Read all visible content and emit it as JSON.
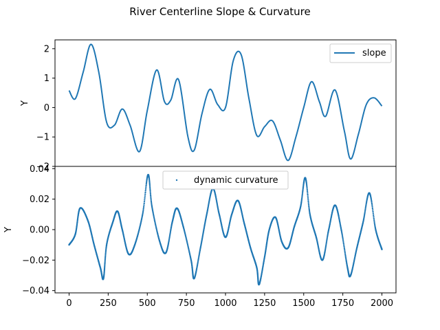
{
  "figure": {
    "title": "River Centerline Slope & Curvature"
  },
  "chart_data": [
    {
      "type": "line",
      "ylabel": "Y",
      "xlim": [
        -90,
        2090
      ],
      "ylim": [
        -2,
        2.3
      ],
      "yticks": [
        2,
        1,
        0,
        -1,
        -2
      ],
      "ytick_labels": [
        "2",
        "1",
        "0",
        "−1",
        "−2"
      ],
      "legend_position": "top-right",
      "color": "#1f77b4",
      "series": [
        {
          "name": "slope",
          "x": [
            0,
            40,
            90,
            140,
            190,
            240,
            290,
            340,
            390,
            450,
            500,
            560,
            610,
            650,
            700,
            760,
            800,
            850,
            900,
            950,
            1000,
            1050,
            1100,
            1150,
            1200,
            1250,
            1300,
            1350,
            1400,
            1450,
            1500,
            1550,
            1600,
            1640,
            1700,
            1760,
            1800,
            1850,
            1900,
            1950,
            2000
          ],
          "y": [
            0.58,
            0.3,
            1.2,
            2.15,
            1.2,
            -0.5,
            -0.6,
            -0.05,
            -0.6,
            -1.5,
            -0.1,
            1.28,
            0.2,
            0.25,
            0.95,
            -1.0,
            -1.45,
            -0.2,
            0.62,
            0.1,
            0.0,
            1.6,
            1.8,
            0.3,
            -0.95,
            -0.65,
            -0.45,
            -1.1,
            -1.8,
            -1.0,
            0.0,
            0.88,
            0.2,
            -0.3,
            0.6,
            -0.8,
            -1.75,
            -0.9,
            0.1,
            0.33,
            0.05
          ]
        }
      ]
    },
    {
      "type": "scatter",
      "xlabel": "",
      "ylabel": "Y",
      "xlim": [
        -90,
        2090
      ],
      "ylim": [
        -0.0415,
        0.0415
      ],
      "xticks": [
        0,
        250,
        500,
        750,
        1000,
        1250,
        1500,
        1750,
        2000
      ],
      "xtick_labels": [
        "0",
        "250",
        "500",
        "750",
        "1000",
        "1250",
        "1500",
        "1750",
        "2000"
      ],
      "yticks": [
        0.04,
        0.02,
        0.0,
        -0.02,
        -0.04
      ],
      "ytick_labels": [
        "0.04",
        "0.02",
        "0.00",
        "−0.02",
        "−0.04"
      ],
      "legend_position": "upper-center",
      "color": "#1f77b4",
      "series": [
        {
          "name": "dynamic curvature",
          "x": [
            0,
            40,
            70,
            120,
            160,
            200,
            220,
            240,
            280,
            310,
            340,
            380,
            420,
            470,
            505,
            530,
            580,
            620,
            660,
            690,
            730,
            780,
            800,
            840,
            880,
            920,
            960,
            1000,
            1040,
            1080,
            1120,
            1160,
            1200,
            1215,
            1250,
            1280,
            1320,
            1360,
            1400,
            1440,
            1480,
            1510,
            1540,
            1580,
            1620,
            1660,
            1700,
            1740,
            1780,
            1800,
            1840,
            1880,
            1920,
            1960,
            2000
          ],
          "y": [
            -0.01,
            -0.003,
            0.014,
            0.006,
            -0.01,
            -0.025,
            -0.032,
            -0.01,
            0.005,
            0.012,
            0.0,
            -0.016,
            -0.01,
            0.01,
            0.036,
            0.015,
            -0.008,
            -0.015,
            0.005,
            0.014,
            0.002,
            -0.02,
            -0.032,
            -0.012,
            0.01,
            0.027,
            0.01,
            -0.005,
            0.01,
            0.019,
            0.004,
            -0.012,
            -0.025,
            -0.036,
            -0.018,
            0.0,
            0.008,
            -0.008,
            -0.012,
            0.002,
            0.015,
            0.034,
            0.01,
            -0.005,
            -0.02,
            0.0,
            0.016,
            0.0,
            -0.025,
            -0.03,
            -0.012,
            0.005,
            0.024,
            0.0,
            -0.013
          ]
        }
      ]
    }
  ]
}
